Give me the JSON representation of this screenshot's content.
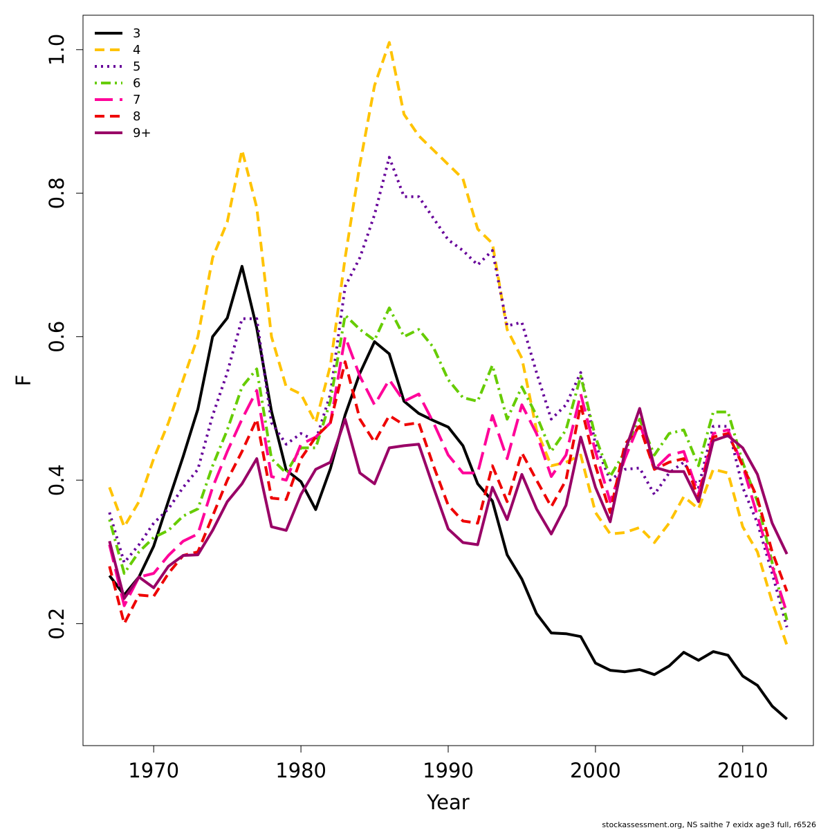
{
  "chart_data": {
    "type": "line",
    "xlabel": "Year",
    "ylabel": "F",
    "footnote": "stockassessment.org, NS saithe 7 exidx age3 full, r6526",
    "x": [
      1967,
      1968,
      1969,
      1970,
      1971,
      1972,
      1973,
      1974,
      1975,
      1976,
      1977,
      1978,
      1979,
      1980,
      1981,
      1982,
      1983,
      1984,
      1985,
      1986,
      1987,
      1988,
      1989,
      1990,
      1991,
      1992,
      1993,
      1994,
      1995,
      1996,
      1997,
      1998,
      1999,
      2000,
      2001,
      2002,
      2003,
      2004,
      2005,
      2006,
      2007,
      2008,
      2009,
      2010,
      2011,
      2012,
      2013
    ],
    "xlim": [
      1965.2,
      2014.8
    ],
    "xticks": [
      1970,
      1980,
      1990,
      2000,
      2010
    ],
    "ylim": [
      0.03,
      1.048
    ],
    "yticks": [
      0.2,
      0.4,
      0.6,
      0.8,
      {
        "value": 1,
        "label": "1.0"
      }
    ],
    "grid": false,
    "legend": "topleft",
    "series": [
      {
        "name": "3",
        "color": "#000000",
        "line_style": "solid",
        "values": [
          0.267,
          0.24,
          0.265,
          0.308,
          0.371,
          0.433,
          0.499,
          0.6,
          0.626,
          0.698,
          0.612,
          0.496,
          0.414,
          0.398,
          0.359,
          0.416,
          0.491,
          0.549,
          0.593,
          0.576,
          0.51,
          0.493,
          0.483,
          0.474,
          0.448,
          0.395,
          0.371,
          0.296,
          0.262,
          0.214,
          0.187,
          0.186,
          0.182,
          0.145,
          0.135,
          0.133,
          0.136,
          0.129,
          0.141,
          0.16,
          0.149,
          0.161,
          0.156,
          0.127,
          0.114,
          0.085,
          0.067
        ]
      },
      {
        "name": "4",
        "color": "#ffc300",
        "line_style": "dashed",
        "values": [
          0.39,
          0.335,
          0.37,
          0.43,
          0.48,
          0.54,
          0.6,
          0.71,
          0.76,
          0.86,
          0.78,
          0.6,
          0.53,
          0.52,
          0.48,
          0.56,
          0.71,
          0.84,
          0.95,
          1.01,
          0.91,
          0.88,
          0.86,
          0.84,
          0.82,
          0.75,
          0.73,
          0.61,
          0.57,
          0.47,
          0.42,
          0.425,
          0.435,
          0.355,
          0.325,
          0.327,
          0.334,
          0.313,
          0.34,
          0.377,
          0.36,
          0.415,
          0.41,
          0.335,
          0.3,
          0.23,
          0.17
        ]
      },
      {
        "name": "5",
        "color": "#660099",
        "line_style": "dotted",
        "values": [
          0.355,
          0.285,
          0.31,
          0.34,
          0.36,
          0.39,
          0.415,
          0.49,
          0.55,
          0.625,
          0.625,
          0.48,
          0.45,
          0.465,
          0.455,
          0.52,
          0.67,
          0.71,
          0.77,
          0.85,
          0.795,
          0.795,
          0.765,
          0.735,
          0.72,
          0.7,
          0.72,
          0.615,
          0.62,
          0.55,
          0.485,
          0.505,
          0.55,
          0.45,
          0.4,
          0.415,
          0.417,
          0.38,
          0.41,
          0.425,
          0.39,
          0.475,
          0.475,
          0.39,
          0.34,
          0.27,
          0.195
        ]
      },
      {
        "name": "6",
        "color": "#66cc00",
        "line_style": "dotdash",
        "values": [
          0.345,
          0.27,
          0.3,
          0.32,
          0.33,
          0.35,
          0.36,
          0.42,
          0.47,
          0.53,
          0.555,
          0.43,
          0.41,
          0.445,
          0.445,
          0.51,
          0.63,
          0.61,
          0.595,
          0.64,
          0.6,
          0.61,
          0.585,
          0.54,
          0.515,
          0.51,
          0.56,
          0.485,
          0.53,
          0.49,
          0.44,
          0.47,
          0.545,
          0.46,
          0.405,
          0.44,
          0.485,
          0.435,
          0.465,
          0.47,
          0.42,
          0.495,
          0.495,
          0.425,
          0.37,
          0.285,
          0.205
        ]
      },
      {
        "name": "7",
        "color": "#ff0099",
        "line_style": "longdash",
        "values": [
          0.31,
          0.225,
          0.265,
          0.27,
          0.295,
          0.315,
          0.325,
          0.39,
          0.44,
          0.485,
          0.525,
          0.405,
          0.4,
          0.45,
          0.46,
          0.48,
          0.6,
          0.545,
          0.505,
          0.54,
          0.51,
          0.52,
          0.48,
          0.435,
          0.41,
          0.41,
          0.49,
          0.43,
          0.505,
          0.465,
          0.405,
          0.435,
          0.52,
          0.44,
          0.37,
          0.43,
          0.48,
          0.415,
          0.435,
          0.44,
          0.38,
          0.465,
          0.47,
          0.42,
          0.35,
          0.28,
          0.215
        ]
      },
      {
        "name": "8",
        "color": "#ee0000",
        "line_style": "dashed",
        "values": [
          0.28,
          0.2,
          0.24,
          0.238,
          0.27,
          0.295,
          0.3,
          0.35,
          0.4,
          0.44,
          0.485,
          0.375,
          0.373,
          0.43,
          0.46,
          0.48,
          0.565,
          0.485,
          0.453,
          0.49,
          0.477,
          0.48,
          0.42,
          0.365,
          0.343,
          0.34,
          0.42,
          0.37,
          0.438,
          0.4,
          0.363,
          0.4,
          0.505,
          0.42,
          0.355,
          0.45,
          0.475,
          0.415,
          0.425,
          0.43,
          0.375,
          0.46,
          0.465,
          0.42,
          0.375,
          0.3,
          0.245
        ]
      },
      {
        "name": "9+",
        "color": "#990066",
        "line_style": "solid",
        "values": [
          0.315,
          0.235,
          0.265,
          0.25,
          0.28,
          0.295,
          0.296,
          0.33,
          0.37,
          0.395,
          0.43,
          0.335,
          0.33,
          0.38,
          0.415,
          0.425,
          0.485,
          0.41,
          0.395,
          0.445,
          0.448,
          0.45,
          0.39,
          0.332,
          0.313,
          0.31,
          0.39,
          0.345,
          0.408,
          0.36,
          0.325,
          0.365,
          0.46,
          0.39,
          0.342,
          0.44,
          0.5,
          0.418,
          0.412,
          0.412,
          0.37,
          0.455,
          0.462,
          0.445,
          0.408,
          0.34,
          0.297
        ]
      }
    ]
  }
}
